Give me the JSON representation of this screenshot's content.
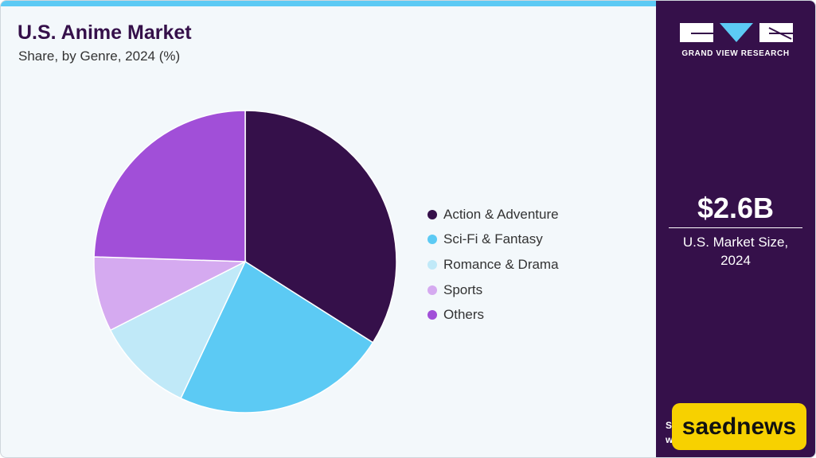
{
  "header": {
    "title": "U.S. Anime Market",
    "subtitle": "Share, by Genre, 2024 (%)"
  },
  "chart_data": {
    "type": "pie",
    "title": "U.S. Anime Market",
    "subtitle": "Share, by Genre, 2024 (%)",
    "legend_position": "right",
    "slices": [
      {
        "label": "Action & Adventure",
        "value": 34.0,
        "color": "#35104a"
      },
      {
        "label": "Sci-Fi & Fantasy",
        "value": 23.0,
        "color": "#5ccaf4"
      },
      {
        "label": "Romance & Drama",
        "value": 10.5,
        "color": "#c0e9f8"
      },
      {
        "label": "Sports",
        "value": 8.0,
        "color": "#d5aaf0"
      },
      {
        "label": "Others",
        "value": 24.5,
        "color": "#a14fd8"
      }
    ]
  },
  "sidebar": {
    "brand": "GRAND VIEW RESEARCH",
    "market_value": "$2.6B",
    "market_caption_line1": "U.S. Market Size,",
    "market_caption_line2": "2024",
    "source_fragment_1": "S",
    "source_fragment_2": "w"
  },
  "watermark": {
    "text": "saednews",
    "color": "#f7d100"
  },
  "colors": {
    "accent_bar": "#5ccaf4",
    "sidebar_bg": "#35104a"
  }
}
